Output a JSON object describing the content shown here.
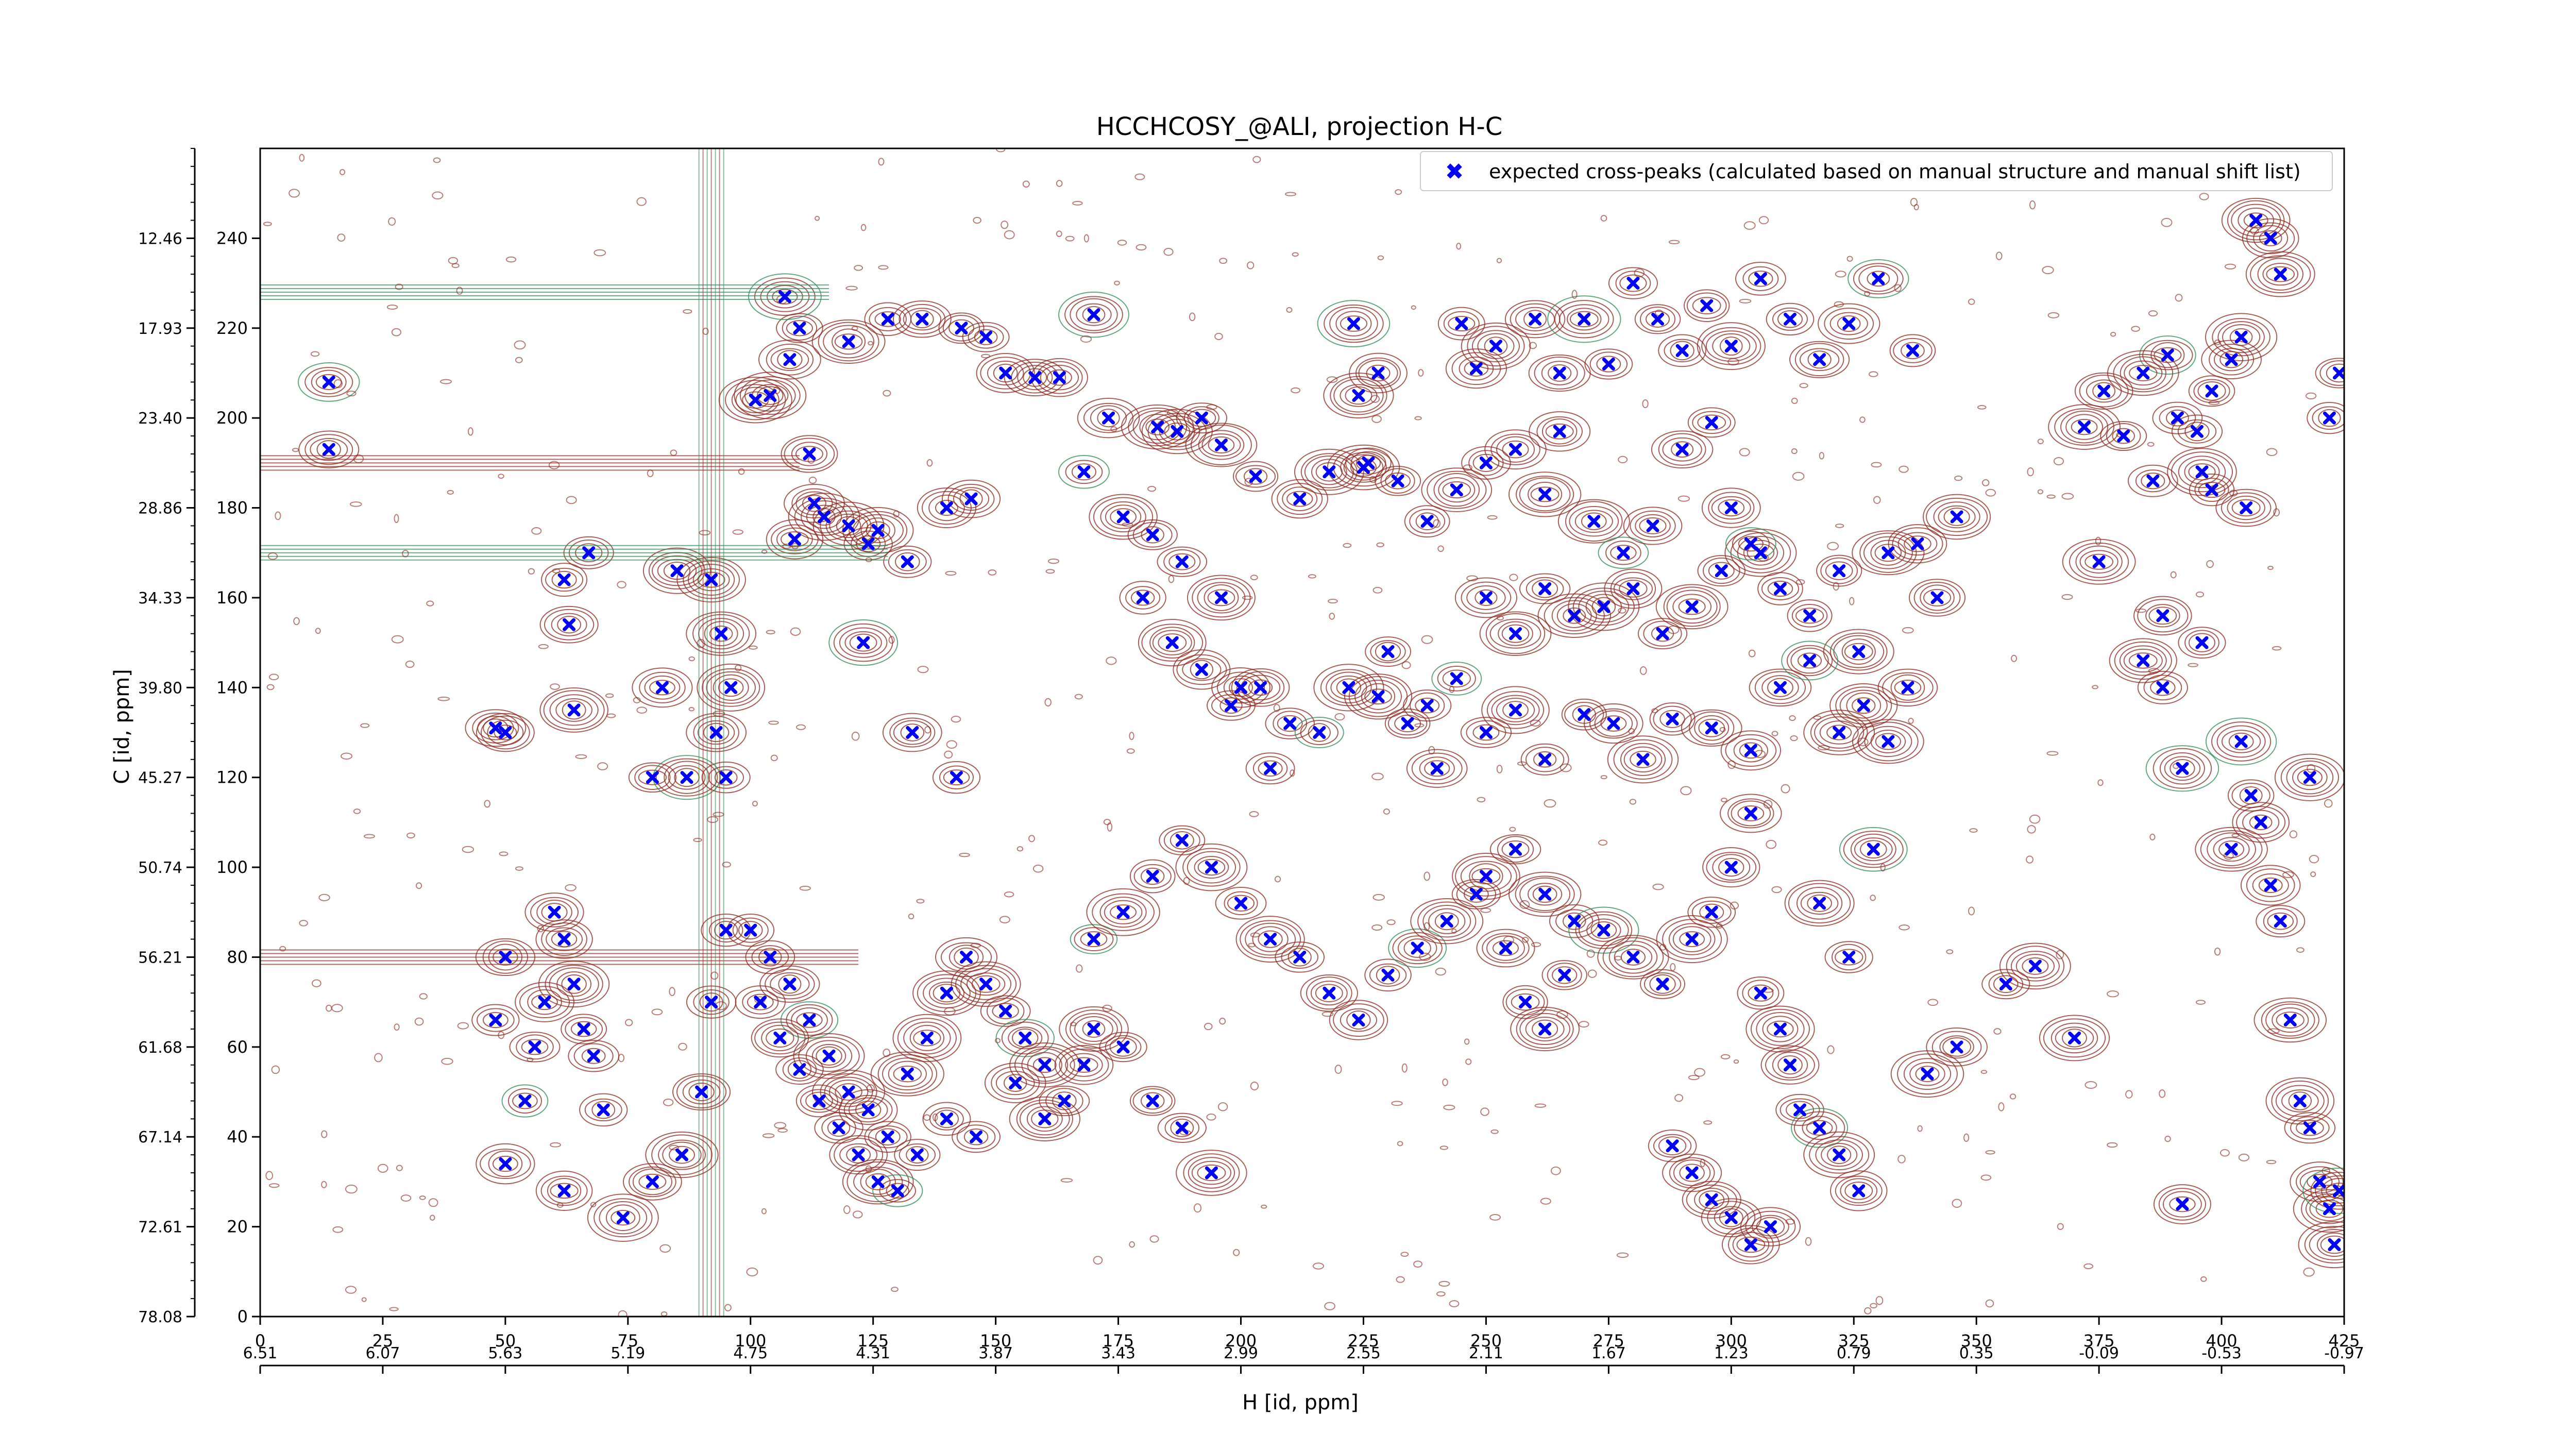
{
  "chart_data": {
    "type": "scatter",
    "title": "HCCHCOSY_@ALI, projection H-C",
    "xlabel": "H [id, ppm]",
    "ylabel": "C [id, ppm]",
    "xlim": [
      0,
      425
    ],
    "ylim": [
      0,
      260
    ],
    "x_ticks_index": [
      0,
      25,
      50,
      75,
      100,
      125,
      150,
      175,
      200,
      225,
      250,
      275,
      300,
      325,
      350,
      375,
      400,
      425
    ],
    "x_ticks_ppm": [
      "6.51",
      "6.07",
      "5.63",
      "5.19",
      "4.75",
      "4.31",
      "3.87",
      "3.43",
      "2.99",
      "2.55",
      "2.11",
      "1.67",
      "1.23",
      "0.79",
      "0.35",
      "-0.09",
      "-0.53",
      "-0.97"
    ],
    "y_ticks_index": [
      0,
      20,
      40,
      60,
      80,
      100,
      120,
      140,
      160,
      180,
      200,
      220,
      240
    ],
    "y_ticks_ppm": [
      "78.08",
      "72.61",
      "67.14",
      "61.68",
      "56.21",
      "50.74",
      "45.27",
      "39.80",
      "34.33",
      "28.86",
      "23.40",
      "17.93",
      "12.46"
    ],
    "grid": false,
    "legend_position": "top-right",
    "contour_colors": {
      "positive": "#8b2a1e",
      "negative": "#2e8b57"
    },
    "series": [
      {
        "name": "expected cross-peaks (calculated based on manual structure and manual shift list)",
        "color": "#0000ff",
        "marker": "x",
        "points": [
          [
            14,
            208
          ],
          [
            14,
            193
          ],
          [
            50,
            34
          ],
          [
            62,
            164
          ],
          [
            63,
            154
          ],
          [
            64,
            135
          ],
          [
            50,
            130
          ],
          [
            48,
            131
          ],
          [
            67,
            170
          ],
          [
            82,
            140
          ],
          [
            80,
            120
          ],
          [
            87,
            120
          ],
          [
            85,
            166
          ],
          [
            92,
            164
          ],
          [
            94,
            152
          ],
          [
            96,
            140
          ],
          [
            95,
            120
          ],
          [
            93,
            130
          ],
          [
            101,
            204
          ],
          [
            104,
            205
          ],
          [
            108,
            213
          ],
          [
            110,
            220
          ],
          [
            107,
            227
          ],
          [
            112,
            192
          ],
          [
            113,
            181
          ],
          [
            109,
            173
          ],
          [
            115,
            178
          ],
          [
            120,
            176
          ],
          [
            124,
            172
          ],
          [
            126,
            175
          ],
          [
            132,
            168
          ],
          [
            140,
            180
          ],
          [
            145,
            182
          ],
          [
            123,
            150
          ],
          [
            133,
            130
          ],
          [
            142,
            120
          ],
          [
            120,
            217
          ],
          [
            128,
            222
          ],
          [
            135,
            222
          ],
          [
            143,
            220
          ],
          [
            148,
            218
          ],
          [
            152,
            210
          ],
          [
            158,
            209
          ],
          [
            163,
            209
          ],
          [
            170,
            223
          ],
          [
            173,
            200
          ],
          [
            183,
            198
          ],
          [
            187,
            197
          ],
          [
            192,
            200
          ],
          [
            196,
            194
          ],
          [
            203,
            187
          ],
          [
            212,
            182
          ],
          [
            218,
            188
          ],
          [
            225,
            189
          ],
          [
            228,
            210
          ],
          [
            223,
            221
          ],
          [
            224,
            205
          ],
          [
            226,
            190
          ],
          [
            232,
            186
          ],
          [
            238,
            177
          ],
          [
            244,
            184
          ],
          [
            250,
            190
          ],
          [
            256,
            193
          ],
          [
            262,
            183
          ],
          [
            265,
            197
          ],
          [
            272,
            177
          ],
          [
            278,
            170
          ],
          [
            284,
            176
          ],
          [
            290,
            193
          ],
          [
            296,
            199
          ],
          [
            300,
            180
          ],
          [
            306,
            170
          ],
          [
            245,
            221
          ],
          [
            248,
            211
          ],
          [
            252,
            216
          ],
          [
            260,
            222
          ],
          [
            265,
            210
          ],
          [
            270,
            222
          ],
          [
            275,
            212
          ],
          [
            280,
            230
          ],
          [
            285,
            222
          ],
          [
            290,
            215
          ],
          [
            295,
            225
          ],
          [
            300,
            216
          ],
          [
            306,
            231
          ],
          [
            312,
            222
          ],
          [
            318,
            213
          ],
          [
            324,
            221
          ],
          [
            330,
            231
          ],
          [
            337,
            215
          ],
          [
            250,
            160
          ],
          [
            256,
            152
          ],
          [
            262,
            162
          ],
          [
            268,
            156
          ],
          [
            274,
            158
          ],
          [
            280,
            162
          ],
          [
            286,
            152
          ],
          [
            292,
            158
          ],
          [
            298,
            166
          ],
          [
            304,
            172
          ],
          [
            310,
            162
          ],
          [
            316,
            156
          ],
          [
            322,
            166
          ],
          [
            326,
            148
          ],
          [
            332,
            170
          ],
          [
            338,
            172
          ],
          [
            342,
            160
          ],
          [
            346,
            178
          ],
          [
            230,
            148
          ],
          [
            238,
            136
          ],
          [
            244,
            142
          ],
          [
            250,
            130
          ],
          [
            256,
            135
          ],
          [
            262,
            124
          ],
          [
            270,
            134
          ],
          [
            276,
            132
          ],
          [
            282,
            124
          ],
          [
            288,
            133
          ],
          [
            296,
            131
          ],
          [
            304,
            126
          ],
          [
            310,
            140
          ],
          [
            316,
            146
          ],
          [
            322,
            130
          ],
          [
            327,
            136
          ],
          [
            332,
            128
          ],
          [
            336,
            140
          ],
          [
            180,
            160
          ],
          [
            186,
            150
          ],
          [
            192,
            144
          ],
          [
            198,
            136
          ],
          [
            204,
            140
          ],
          [
            210,
            132
          ],
          [
            216,
            130
          ],
          [
            222,
            140
          ],
          [
            228,
            138
          ],
          [
            234,
            132
          ],
          [
            240,
            122
          ],
          [
            206,
            122
          ],
          [
            200,
            140
          ],
          [
            196,
            160
          ],
          [
            188,
            168
          ],
          [
            182,
            174
          ],
          [
            176,
            178
          ],
          [
            168,
            188
          ],
          [
            60,
            90
          ],
          [
            62,
            84
          ],
          [
            64,
            74
          ],
          [
            66,
            64
          ],
          [
            68,
            58
          ],
          [
            70,
            46
          ],
          [
            56,
            60
          ],
          [
            58,
            70
          ],
          [
            50,
            80
          ],
          [
            48,
            66
          ],
          [
            54,
            48
          ],
          [
            62,
            28
          ],
          [
            74,
            22
          ],
          [
            80,
            30
          ],
          [
            86,
            36
          ],
          [
            90,
            50
          ],
          [
            92,
            70
          ],
          [
            95,
            86
          ],
          [
            100,
            86
          ],
          [
            104,
            80
          ],
          [
            108,
            74
          ],
          [
            112,
            66
          ],
          [
            116,
            58
          ],
          [
            120,
            50
          ],
          [
            124,
            46
          ],
          [
            128,
            40
          ],
          [
            132,
            54
          ],
          [
            136,
            62
          ],
          [
            140,
            72
          ],
          [
            144,
            80
          ],
          [
            148,
            74
          ],
          [
            152,
            68
          ],
          [
            156,
            62
          ],
          [
            160,
            56
          ],
          [
            164,
            48
          ],
          [
            168,
            56
          ],
          [
            102,
            70
          ],
          [
            106,
            62
          ],
          [
            110,
            55
          ],
          [
            114,
            48
          ],
          [
            118,
            42
          ],
          [
            122,
            36
          ],
          [
            126,
            30
          ],
          [
            130,
            28
          ],
          [
            134,
            36
          ],
          [
            140,
            44
          ],
          [
            146,
            40
          ],
          [
            154,
            52
          ],
          [
            160,
            44
          ],
          [
            170,
            64
          ],
          [
            176,
            60
          ],
          [
            182,
            48
          ],
          [
            188,
            42
          ],
          [
            194,
            32
          ],
          [
            170,
            84
          ],
          [
            176,
            90
          ],
          [
            182,
            98
          ],
          [
            188,
            106
          ],
          [
            194,
            100
          ],
          [
            200,
            92
          ],
          [
            206,
            84
          ],
          [
            212,
            80
          ],
          [
            218,
            72
          ],
          [
            224,
            66
          ],
          [
            230,
            76
          ],
          [
            236,
            82
          ],
          [
            242,
            88
          ],
          [
            248,
            94
          ],
          [
            254,
            82
          ],
          [
            258,
            70
          ],
          [
            262,
            64
          ],
          [
            266,
            76
          ],
          [
            250,
            98
          ],
          [
            256,
            104
          ],
          [
            262,
            94
          ],
          [
            268,
            88
          ],
          [
            274,
            86
          ],
          [
            280,
            80
          ],
          [
            286,
            74
          ],
          [
            292,
            84
          ],
          [
            296,
            90
          ],
          [
            300,
            100
          ],
          [
            304,
            112
          ],
          [
            306,
            72
          ],
          [
            310,
            64
          ],
          [
            312,
            56
          ],
          [
            314,
            46
          ],
          [
            318,
            42
          ],
          [
            322,
            36
          ],
          [
            326,
            28
          ],
          [
            288,
            38
          ],
          [
            292,
            32
          ],
          [
            296,
            26
          ],
          [
            300,
            22
          ],
          [
            304,
            16
          ],
          [
            308,
            20
          ],
          [
            318,
            92
          ],
          [
            324,
            80
          ],
          [
            329,
            104
          ],
          [
            340,
            54
          ],
          [
            346,
            60
          ],
          [
            356,
            74
          ],
          [
            362,
            78
          ],
          [
            370,
            62
          ],
          [
            375,
            168
          ],
          [
            384,
            146
          ],
          [
            388,
            156
          ],
          [
            396,
            150
          ],
          [
            402,
            104
          ],
          [
            404,
            128
          ],
          [
            406,
            116
          ],
          [
            408,
            110
          ],
          [
            410,
            96
          ],
          [
            412,
            88
          ],
          [
            414,
            66
          ],
          [
            416,
            48
          ],
          [
            418,
            42
          ],
          [
            420,
            30
          ],
          [
            422,
            24
          ],
          [
            386,
            186
          ],
          [
            389,
            214
          ],
          [
            391,
            200
          ],
          [
            395,
            197
          ],
          [
            398,
            206
          ],
          [
            402,
            213
          ],
          [
            404,
            218
          ],
          [
            372,
            198
          ],
          [
            376,
            206
          ],
          [
            380,
            196
          ],
          [
            384,
            210
          ],
          [
            388,
            140
          ],
          [
            392,
            122
          ],
          [
            396,
            188
          ],
          [
            398,
            184
          ],
          [
            405,
            180
          ],
          [
            407,
            244
          ],
          [
            410,
            240
          ],
          [
            412,
            232
          ],
          [
            418,
            120
          ],
          [
            422,
            200
          ],
          [
            424,
            210
          ],
          [
            423,
            16
          ],
          [
            424,
            28
          ],
          [
            392,
            25
          ]
        ]
      }
    ]
  }
}
